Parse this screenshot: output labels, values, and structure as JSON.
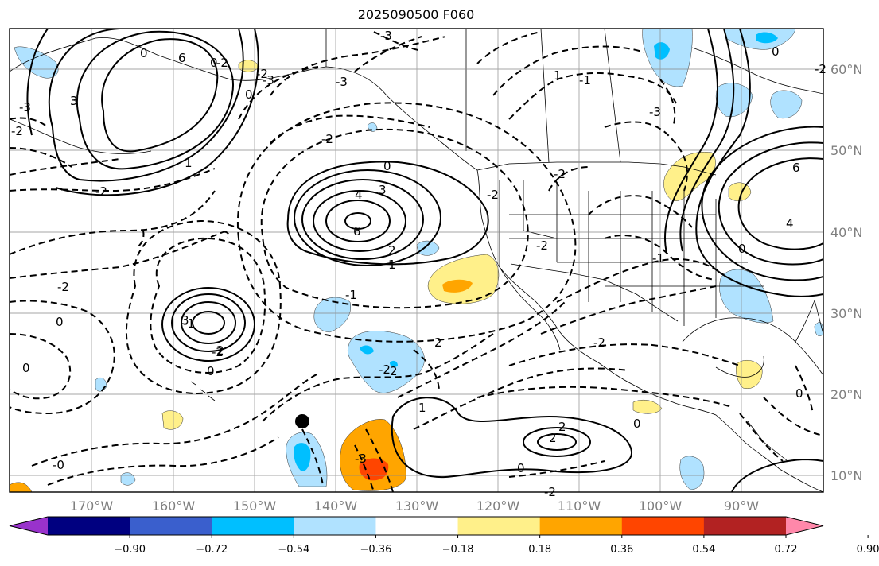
{
  "title": "2025090500 F060",
  "longitude_labels": [
    "170°W",
    "160°W",
    "150°W",
    "140°W",
    "130°W",
    "120°W",
    "110°W",
    "100°W",
    "90°W"
  ],
  "latitude_labels": [
    "60°N",
    "50°N",
    "40°N",
    "30°N",
    "20°N",
    "10°N"
  ],
  "colorbar": {
    "colors": [
      "#9932cc",
      "#000080",
      "#3a5fcd",
      "#00bfff",
      "#b0e2ff",
      "#ffffff",
      "#fff08a",
      "#ffa500",
      "#ff4500",
      "#b22222",
      "#ff88aa"
    ],
    "tick_labels": [
      "−0.90",
      "−0.72",
      "−0.54",
      "−0.36",
      "−0.18",
      "0.18",
      "0.36",
      "0.54",
      "0.72",
      "0.90"
    ]
  },
  "contour_labels": [
    "-3",
    "0",
    "0",
    "6",
    "3",
    "-3",
    "-2",
    "1",
    "-2",
    "-1",
    "-3",
    "-2",
    "-2",
    "0",
    "4",
    "3",
    "6",
    "2",
    "1",
    "-2",
    "1",
    "-2",
    "-1",
    "-2",
    "-2",
    "3",
    "2",
    "2",
    "0",
    "0",
    "-1",
    "-2",
    "1",
    "2",
    "2",
    "0",
    "0",
    "-2",
    "-3",
    "6",
    "4",
    "0",
    "0",
    "-0",
    "0",
    "-1",
    "0",
    "0",
    "2",
    "-2",
    "-2",
    "-3",
    "-2",
    "-2",
    "-3"
  ]
}
